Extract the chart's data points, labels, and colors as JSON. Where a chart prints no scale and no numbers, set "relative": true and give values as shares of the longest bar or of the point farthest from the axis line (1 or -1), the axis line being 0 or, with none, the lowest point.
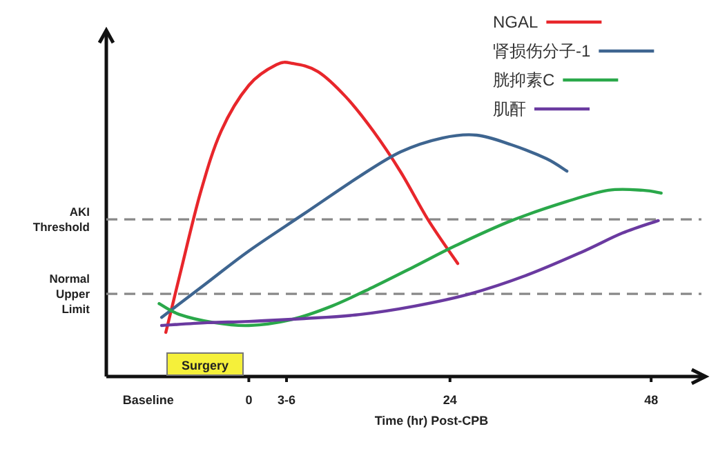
{
  "chart_data": {
    "type": "line",
    "relative": true,
    "xlabel": "Time (hr) Post-CPB",
    "xlim": [
      -17,
      54
    ],
    "xticks": [
      {
        "value": -12,
        "label": "Baseline"
      },
      0,
      {
        "value": 4.5,
        "label": "3-6"
      },
      24,
      48
    ],
    "legend": "top right",
    "series": [
      {
        "name": "NGAL",
        "color": "#e8262b",
        "x": [
          -9.9,
          -8.25,
          -5.78,
          -3.3,
          0,
          3.3,
          5.28,
          8.25,
          11.55,
          14.85,
          18.15,
          21.45,
          24.92
        ],
        "values": [
          0.141,
          0.322,
          0.586,
          0.784,
          0.93,
          0.996,
          1,
          0.974,
          0.894,
          0.784,
          0.652,
          0.498,
          0.361
        ]
      },
      {
        "name": "肾损伤分子-1",
        "color": "#3e6590",
        "x": [
          -10.4,
          -4.95,
          0,
          6.6,
          13.2,
          18.15,
          23.1,
          27.2,
          31.35,
          35.5,
          37.95
        ],
        "values": [
          0.189,
          0.3,
          0.401,
          0.52,
          0.639,
          0.718,
          0.762,
          0.771,
          0.74,
          0.696,
          0.656
        ]
      },
      {
        "name": "胱抑素C",
        "color": "#2aa84a",
        "x": [
          -10.7,
          -8.25,
          -4.1,
          0,
          4.95,
          9.9,
          14.85,
          19.8,
          24.75,
          31.35,
          37.95,
          42.9,
          47.0,
          49.2
        ],
        "values": [
          0.233,
          0.198,
          0.172,
          0.163,
          0.181,
          0.225,
          0.286,
          0.352,
          0.419,
          0.498,
          0.559,
          0.595,
          0.595,
          0.586
        ]
      },
      {
        "name": "肌酐",
        "color": "#6a3aa0",
        "x": [
          -10.4,
          -4.95,
          0,
          6.6,
          13.2,
          19.8,
          26.4,
          33.0,
          39.6,
          44.55,
          48.85
        ],
        "values": [
          0.163,
          0.172,
          0.176,
          0.185,
          0.198,
          0.225,
          0.264,
          0.322,
          0.396,
          0.458,
          0.498
        ]
      }
    ],
    "ref_lines": [
      {
        "axis": "y",
        "value": 0.502,
        "label": "AKI Threshold",
        "color": "#888888",
        "line_style": "dashed"
      },
      {
        "axis": "y",
        "value": 0.264,
        "label": "Normal Upper Limit",
        "color": "#888888",
        "line_style": "dashed"
      }
    ],
    "annotations": [
      "Surgery"
    ]
  }
}
